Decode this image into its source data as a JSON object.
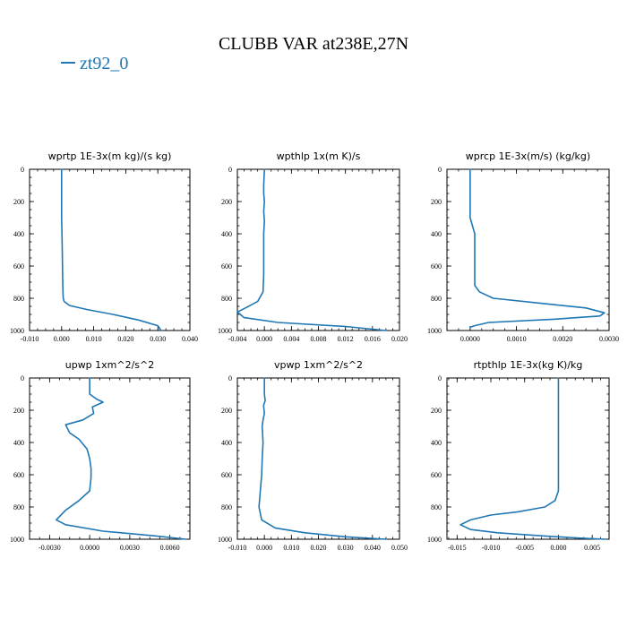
{
  "figure": {
    "title": "CLUBB VAR at238E,27N",
    "legend_label": "zt92_0",
    "series_color": "#1f77b4"
  },
  "chart_data": [
    {
      "type": "line",
      "title": "wprtp   1E-3x(m kg)/(s kg)",
      "series_name": "zt92_0",
      "xlim": [
        -0.01,
        0.04
      ],
      "ylim": [
        1000,
        0
      ],
      "xticks": [
        -0.01,
        0.0,
        0.01,
        0.02,
        0.03,
        0.04
      ],
      "xtick_labels": [
        "-0.010",
        "0.000",
        "0.010",
        "0.020",
        "0.030",
        "0.040"
      ],
      "yticks": [
        0,
        200,
        400,
        600,
        800,
        1000
      ],
      "ytick_labels": [
        "0",
        "200",
        "400",
        "600",
        "800",
        "1000"
      ],
      "x": [
        0.0,
        0.0,
        0.0002,
        0.0003,
        0.0004,
        0.0005,
        0.0008,
        0.0025,
        0.008,
        0.016,
        0.024,
        0.03,
        0.031
      ],
      "y": [
        0,
        300,
        500,
        650,
        750,
        800,
        820,
        845,
        870,
        900,
        935,
        970,
        1000
      ]
    },
    {
      "type": "line",
      "title": "wpthlp   1x(m K)/s",
      "series_name": "zt92_0",
      "xlim": [
        -0.004,
        0.02
      ],
      "ylim": [
        1000,
        0
      ],
      "xticks": [
        -0.004,
        0.0,
        0.004,
        0.008,
        0.012,
        0.016,
        0.02
      ],
      "xtick_labels": [
        "-0.004",
        "0.000",
        "0.004",
        "0.008",
        "0.012",
        "0.016",
        "0.020"
      ],
      "yticks": [
        0,
        200,
        400,
        600,
        800,
        1000
      ],
      "ytick_labels": [
        "0",
        "200",
        "400",
        "600",
        "800",
        "1000"
      ],
      "x": [
        0.0,
        -0.0001,
        -0.0001,
        0.0,
        -0.0001,
        0.0,
        -0.0001,
        -0.0001,
        -0.0001,
        -0.0002,
        -0.001,
        -0.0028,
        -0.004,
        -0.003,
        0.002,
        0.012,
        0.018
      ],
      "y": [
        0,
        100,
        150,
        200,
        260,
        320,
        400,
        500,
        650,
        760,
        820,
        860,
        885,
        920,
        950,
        975,
        1000
      ]
    },
    {
      "type": "line",
      "title": "wprcp   1E-3x(m/s) (kg/kg)",
      "series_name": "zt92_0",
      "xlim": [
        -0.0005,
        0.003
      ],
      "ylim": [
        1000,
        0
      ],
      "xticks": [
        0.0,
        0.001,
        0.002,
        0.003
      ],
      "xtick_labels": [
        "0.0000",
        "0.0010",
        "0.0020",
        "0.0030"
      ],
      "yticks": [
        0,
        200,
        400,
        600,
        800,
        1000
      ],
      "ytick_labels": [
        "0",
        "200",
        "400",
        "600",
        "800",
        "1000"
      ],
      "x": [
        0.0,
        0.0,
        0.0001,
        0.0001,
        0.0001,
        0.0001,
        0.0001,
        0.0002,
        0.0005,
        0.0015,
        0.0025,
        0.0029,
        0.0028,
        0.0018,
        0.0004,
        0.0001,
        0.0
      ],
      "y": [
        0,
        300,
        400,
        500,
        600,
        700,
        720,
        760,
        800,
        830,
        860,
        890,
        910,
        930,
        950,
        970,
        980
      ]
    },
    {
      "type": "line",
      "title": "upwp   1xm^2/s^2",
      "series_name": "zt92_0",
      "xlim": [
        -0.0045,
        0.0075
      ],
      "ylim": [
        1000,
        0
      ],
      "xticks": [
        -0.003,
        0.0,
        0.003,
        0.006
      ],
      "xtick_labels": [
        "-0.0030",
        "0.0000",
        "0.0030",
        "0.0060"
      ],
      "yticks": [
        0,
        200,
        400,
        600,
        800,
        1000
      ],
      "ytick_labels": [
        "0",
        "200",
        "400",
        "600",
        "800",
        "1000"
      ],
      "x": [
        0.0,
        0.0,
        0.0005,
        0.001,
        0.0002,
        0.0003,
        -0.0005,
        -0.0018,
        -0.0015,
        -0.0008,
        -0.0002,
        0.0,
        0.0001,
        0.0001,
        0.0,
        -0.0008,
        -0.0018,
        -0.0025,
        -0.0018,
        0.001,
        0.005,
        0.0072
      ],
      "y": [
        0,
        100,
        130,
        150,
        180,
        220,
        260,
        290,
        340,
        380,
        440,
        500,
        560,
        620,
        700,
        760,
        820,
        880,
        910,
        950,
        980,
        1000
      ]
    },
    {
      "type": "line",
      "title": "vpwp   1xm^2/s^2",
      "series_name": "zt92_0",
      "xlim": [
        -0.01,
        0.05
      ],
      "ylim": [
        1000,
        0
      ],
      "xticks": [
        -0.01,
        0.0,
        0.01,
        0.02,
        0.03,
        0.04,
        0.05
      ],
      "xtick_labels": [
        "-0.010",
        "0.000",
        "0.010",
        "0.020",
        "0.030",
        "0.040",
        "0.050"
      ],
      "yticks": [
        0,
        200,
        400,
        600,
        800,
        1000
      ],
      "ytick_labels": [
        "0",
        "200",
        "400",
        "600",
        "800",
        "1000"
      ],
      "x": [
        0.0,
        0.0,
        0.0003,
        -0.0003,
        0.0,
        -0.0005,
        -0.0008,
        -0.0005,
        -0.0008,
        -0.001,
        -0.0015,
        -0.002,
        -0.001,
        0.004,
        0.015,
        0.03,
        0.045
      ],
      "y": [
        0,
        100,
        140,
        170,
        220,
        260,
        300,
        400,
        500,
        600,
        700,
        800,
        880,
        930,
        960,
        985,
        1000
      ]
    },
    {
      "type": "line",
      "title": "rtpthlp   1E-3x(kg K)/kg",
      "series_name": "zt92_0",
      "xlim": [
        -0.0165,
        0.0075
      ],
      "ylim": [
        1000,
        0
      ],
      "xticks": [
        -0.015,
        -0.01,
        -0.005,
        0.0,
        0.005
      ],
      "xtick_labels": [
        "-0.015",
        "-0.010",
        "-0.005",
        "0.000",
        "0.005"
      ],
      "yticks": [
        0,
        200,
        400,
        600,
        800,
        1000
      ],
      "ytick_labels": [
        "0",
        "200",
        "400",
        "600",
        "800",
        "1000"
      ],
      "x": [
        0.0,
        0.0,
        0.0,
        0.0,
        0.0,
        -0.0005,
        -0.002,
        -0.006,
        -0.01,
        -0.013,
        -0.0145,
        -0.013,
        -0.009,
        -0.002,
        0.004,
        0.007
      ],
      "y": [
        0,
        300,
        500,
        650,
        700,
        760,
        800,
        830,
        850,
        880,
        910,
        940,
        960,
        980,
        995,
        1000
      ]
    }
  ]
}
